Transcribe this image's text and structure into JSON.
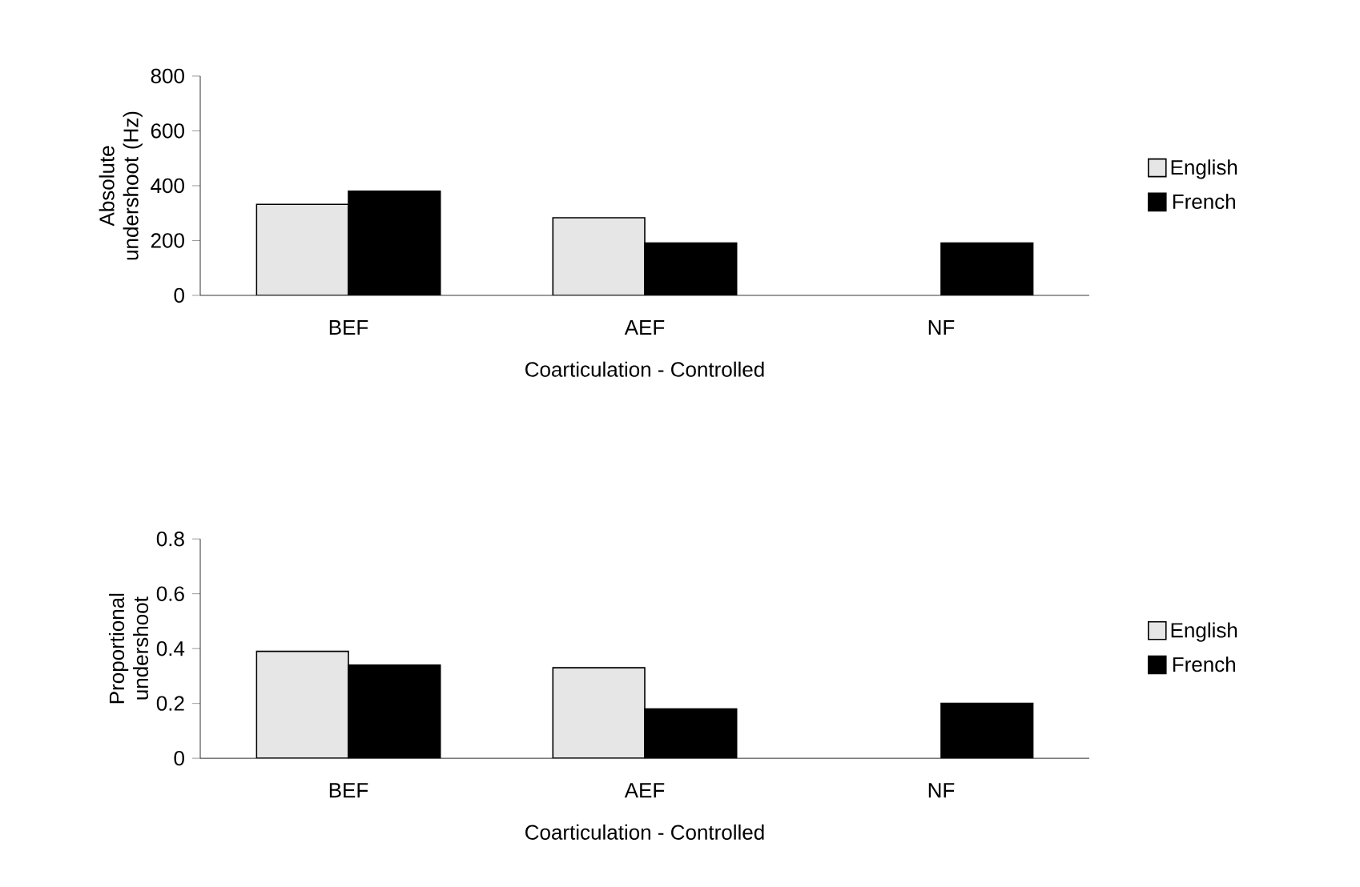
{
  "chart_data": [
    {
      "type": "bar",
      "xlabel": "Coarticulation - Controlled",
      "ylabel": "Absolute undershoot (Hz)",
      "categories": [
        "BEF",
        "AEF",
        "NF"
      ],
      "series": [
        {
          "name": "English",
          "color": "#e6e6e6",
          "values": [
            332,
            283,
            null
          ]
        },
        {
          "name": "French",
          "color": "#000000",
          "values": [
            380,
            191,
            191
          ]
        }
      ],
      "ylim": [
        0,
        800
      ],
      "yticks": [
        0,
        200,
        400,
        600,
        800
      ],
      "legend": "right"
    },
    {
      "type": "bar",
      "xlabel": "Coarticulation - Controlled",
      "ylabel": "Proportional undershoot",
      "categories": [
        "BEF",
        "AEF",
        "NF"
      ],
      "series": [
        {
          "name": "English",
          "color": "#e6e6e6",
          "values": [
            0.39,
            0.33,
            null
          ]
        },
        {
          "name": "French",
          "color": "#000000",
          "values": [
            0.34,
            0.18,
            0.2
          ]
        }
      ],
      "ylim": [
        0,
        0.8
      ],
      "yticks": [
        0,
        0.2,
        0.4,
        0.6,
        0.8
      ],
      "legend": "right"
    }
  ]
}
